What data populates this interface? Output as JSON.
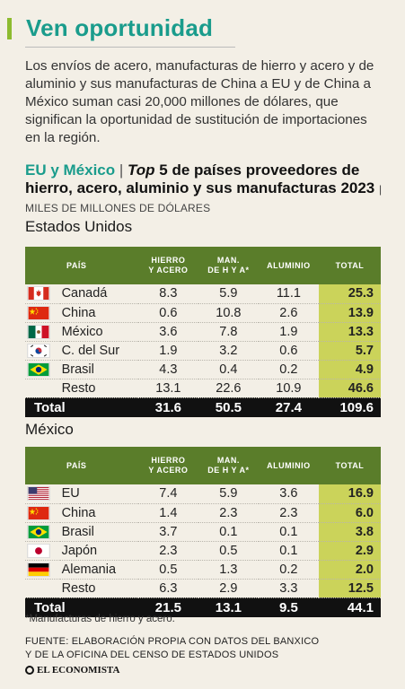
{
  "title": "Ven oportunidad",
  "intro": "Los envíos de acero, manufacturas de hierro y acero y de aluminio y sus manufacturas de China a EU y de China a México suman casi 20,000 millones de dólares, que significan la oportunidad de sustitución de importaciones en la región.",
  "heading": {
    "highlight": "EU y México",
    "sep": "|",
    "italic": "Top",
    "main": " 5 de países proveedores de hierro, acero, aluminio y sus manufacturas 2023",
    "unit": "| MILES DE MILLONES DE DÓLARES"
  },
  "columns": {
    "pais": "PAÍS",
    "hierro1": "HIERRO",
    "hierro2": "Y ACERO",
    "man1": "MAN.",
    "man2": "DE H Y A*",
    "aluminio": "ALUMINIO",
    "total": "TOTAL"
  },
  "tables": [
    {
      "name": "Estados Unidos",
      "rows": [
        {
          "flag": "canada-flag",
          "country": "Canadá",
          "hierro": "8.3",
          "man": "5.9",
          "aluminio": "11.1",
          "total": "25.3"
        },
        {
          "flag": "china-flag",
          "country": "China",
          "hierro": "0.6",
          "man": "10.8",
          "aluminio": "2.6",
          "total": "13.9"
        },
        {
          "flag": "mexico-flag",
          "country": "México",
          "hierro": "3.6",
          "man": "7.8",
          "aluminio": "1.9",
          "total": "13.3"
        },
        {
          "flag": "south-korea-flag",
          "country": "C. del Sur",
          "hierro": "1.9",
          "man": "3.2",
          "aluminio": "0.6",
          "total": "5.7"
        },
        {
          "flag": "brazil-flag",
          "country": "Brasil",
          "hierro": "4.3",
          "man": "0.4",
          "aluminio": "0.2",
          "total": "4.9"
        },
        {
          "flag": "",
          "country": "Resto",
          "hierro": "13.1",
          "man": "22.6",
          "aluminio": "10.9",
          "total": "46.6"
        }
      ],
      "total": {
        "label": "Total",
        "hierro": "31.6",
        "man": "50.5",
        "aluminio": "27.4",
        "total": "109.6"
      }
    },
    {
      "name": "México",
      "rows": [
        {
          "flag": "usa-flag",
          "country": "EU",
          "hierro": "7.4",
          "man": "5.9",
          "aluminio": "3.6",
          "total": "16.9"
        },
        {
          "flag": "china-flag",
          "country": "China",
          "hierro": "1.4",
          "man": "2.3",
          "aluminio": "2.3",
          "total": "6.0"
        },
        {
          "flag": "brazil-flag",
          "country": "Brasil",
          "hierro": "3.7",
          "man": "0.1",
          "aluminio": "0.1",
          "total": "3.8"
        },
        {
          "flag": "japan-flag",
          "country": "Japón",
          "hierro": "2.3",
          "man": "0.5",
          "aluminio": "0.1",
          "total": "2.9"
        },
        {
          "flag": "germany-flag",
          "country": "Alemania",
          "hierro": "0.5",
          "man": "1.3",
          "aluminio": "0.2",
          "total": "2.0"
        },
        {
          "flag": "",
          "country": "Resto",
          "hierro": "6.3",
          "man": "2.9",
          "aluminio": "3.3",
          "total": "12.5"
        }
      ],
      "total": {
        "label": "Total",
        "hierro": "21.5",
        "man": "13.1",
        "aluminio": "9.5",
        "total": "44.1"
      }
    }
  ],
  "footnote": "*Manufacturas de hierro y acero.",
  "source1": "FUENTE: ELABORACIÓN PROPIA CON DATOS DEL BANXICO",
  "source2": "Y DE LA OFICINA DEL CENSO DE ESTADOS UNIDOS",
  "brand": "EL ECONOMISTA",
  "colors": {
    "accent": "#1a9c8c",
    "header": "#5a7d2a",
    "total_cell": "#cbd35a",
    "bar": "#8dbb2f"
  }
}
